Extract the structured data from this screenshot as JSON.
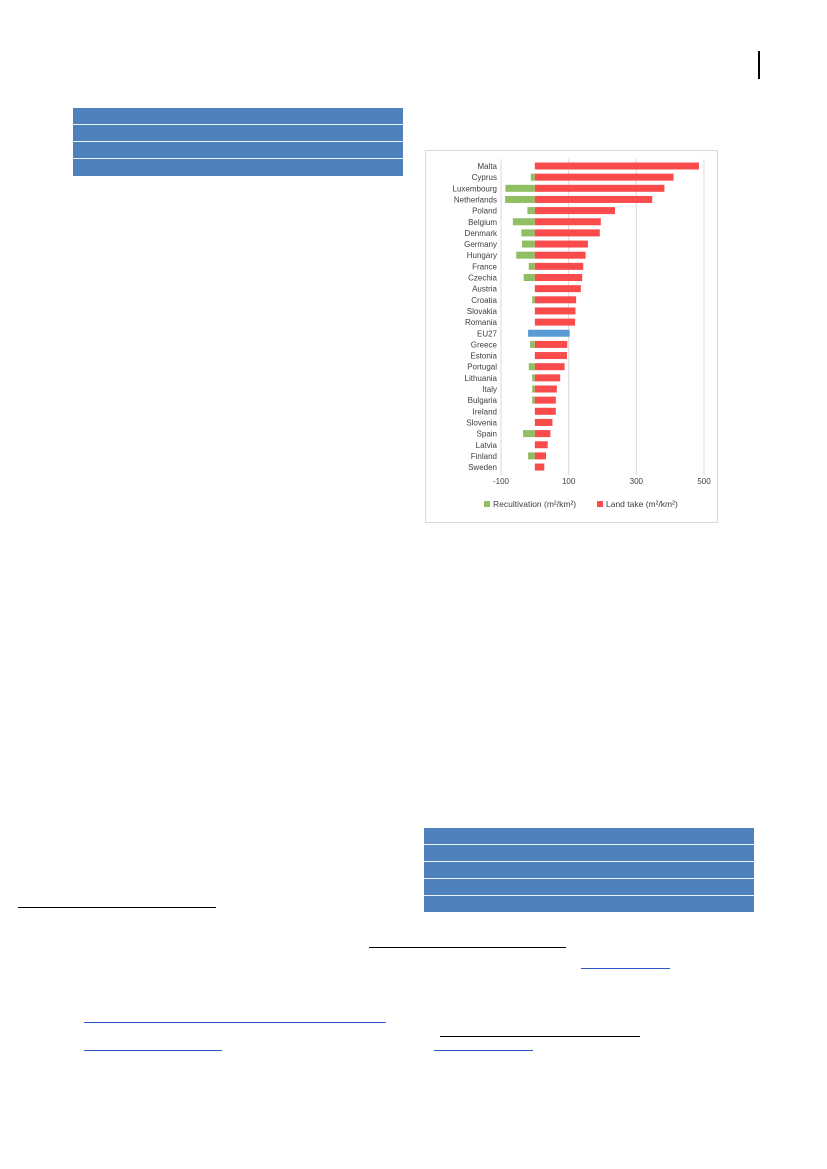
{
  "colors": {
    "recultivation": "#8fbe63",
    "land_take": "#f94b4b",
    "eu27": "#5b9bd5",
    "header_blue": "#4f81bd",
    "gridline": "#d9d9d9"
  },
  "chart_data": {
    "type": "bar",
    "orientation": "horizontal",
    "stacked": "diverging",
    "categories": [
      "Malta",
      "Cyprus",
      "Luxembourg",
      "Netherlands",
      "Poland",
      "Belgium",
      "Denmark",
      "Germany",
      "Hungary",
      "France",
      "Czechia",
      "Austria",
      "Croatia",
      "Slovakia",
      "Romania",
      "EU27",
      "Greece",
      "Estonia",
      "Portugal",
      "Lithuania",
      "Italy",
      "Bulgaria",
      "Ireland",
      "Slovenia",
      "Spain",
      "Latvia",
      "Finland",
      "Sweden"
    ],
    "series": [
      {
        "name": "Recultivation (m²/km²)",
        "color": "#8fbe63",
        "values": [
          0,
          -12,
          -87,
          -88,
          -22,
          -65,
          -40,
          -38,
          -55,
          -18,
          -33,
          0,
          -8,
          0,
          0,
          -20,
          -14,
          0,
          -18,
          -8,
          -8,
          -8,
          0,
          0,
          -35,
          0,
          -20,
          0
        ]
      },
      {
        "name": "Land take (m²/km²)",
        "color": "#f94b4b",
        "values": [
          485,
          410,
          383,
          347,
          237,
          195,
          192,
          157,
          150,
          143,
          140,
          136,
          122,
          120,
          119,
          103,
          96,
          95,
          88,
          75,
          65,
          62,
          62,
          52,
          46,
          38,
          33,
          28
        ]
      }
    ],
    "highlight": {
      "category": "EU27",
      "color": "#5b9bd5"
    },
    "xlim": [
      -100,
      500
    ],
    "xticks": [
      -100,
      100,
      300,
      500
    ],
    "xtick_labels": [
      "-100",
      "100",
      "300",
      "500"
    ],
    "grid": "vertical",
    "legend_position": "bottom"
  }
}
